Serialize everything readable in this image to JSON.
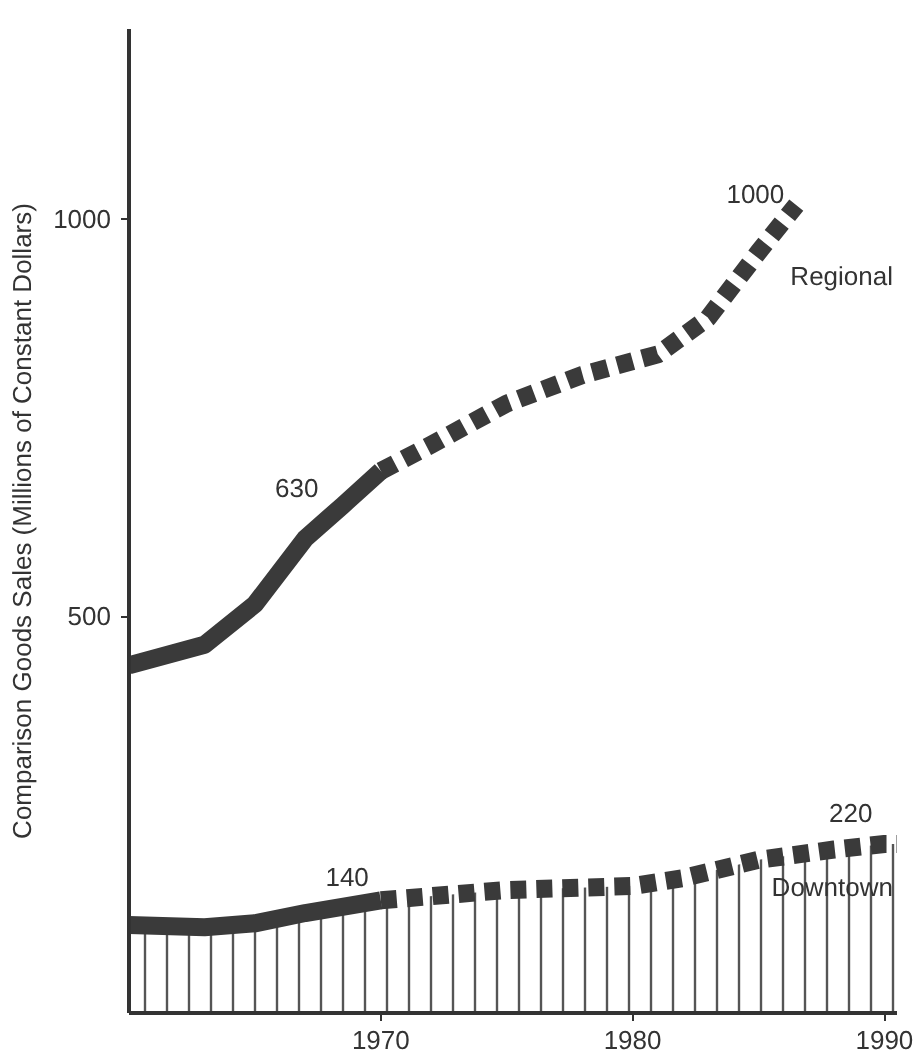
{
  "chart_data": {
    "type": "line",
    "ylabel": "Comparison Goods Sales (Millions of Constant Dollars)",
    "xlim": [
      1960,
      1990.5
    ],
    "ylim": [
      0,
      1240
    ],
    "xticks": [
      1970,
      1980,
      1990
    ],
    "yticks": [
      500,
      1000
    ],
    "grid": false,
    "series": [
      {
        "color": "#3a3a3a",
        "line_style": "solid",
        "x": [
          1960,
          1963,
          1965,
          1967,
          1968.5,
          1970
        ],
        "values": [
          438,
          464,
          515,
          598,
          640,
          683
        ]
      },
      {
        "name": "Regional",
        "color": "#3a3a3a",
        "line_style": "dashed",
        "x": [
          1970,
          1972,
          1975,
          1978,
          1981,
          1983,
          1985,
          1986.5
        ],
        "values": [
          683,
          716,
          768,
          804,
          830,
          876,
          959,
          1018
        ]
      },
      {
        "type": "area",
        "color": "#3a3a3a",
        "line_style": "solid",
        "x": [
          1960,
          1963,
          1965,
          1967,
          1970
        ],
        "values": [
          111,
          108,
          113,
          126,
          142
        ]
      },
      {
        "name": "Downtown",
        "type": "area",
        "color": "#3a3a3a",
        "line_style": "dashed",
        "x": [
          1970,
          1975,
          1980,
          1982,
          1985,
          1988,
          1990,
          1990.5
        ],
        "values": [
          142,
          155,
          160,
          170,
          193,
          206,
          213,
          213
        ]
      }
    ],
    "annotations": [
      {
        "text": "630",
        "x": 1968,
        "y": 630
      },
      {
        "text": "1000",
        "x": 1986.5,
        "y": 1000
      },
      {
        "text": "140",
        "x": 1970,
        "y": 140
      },
      {
        "text": "220",
        "x": 1990,
        "y": 220
      }
    ]
  }
}
